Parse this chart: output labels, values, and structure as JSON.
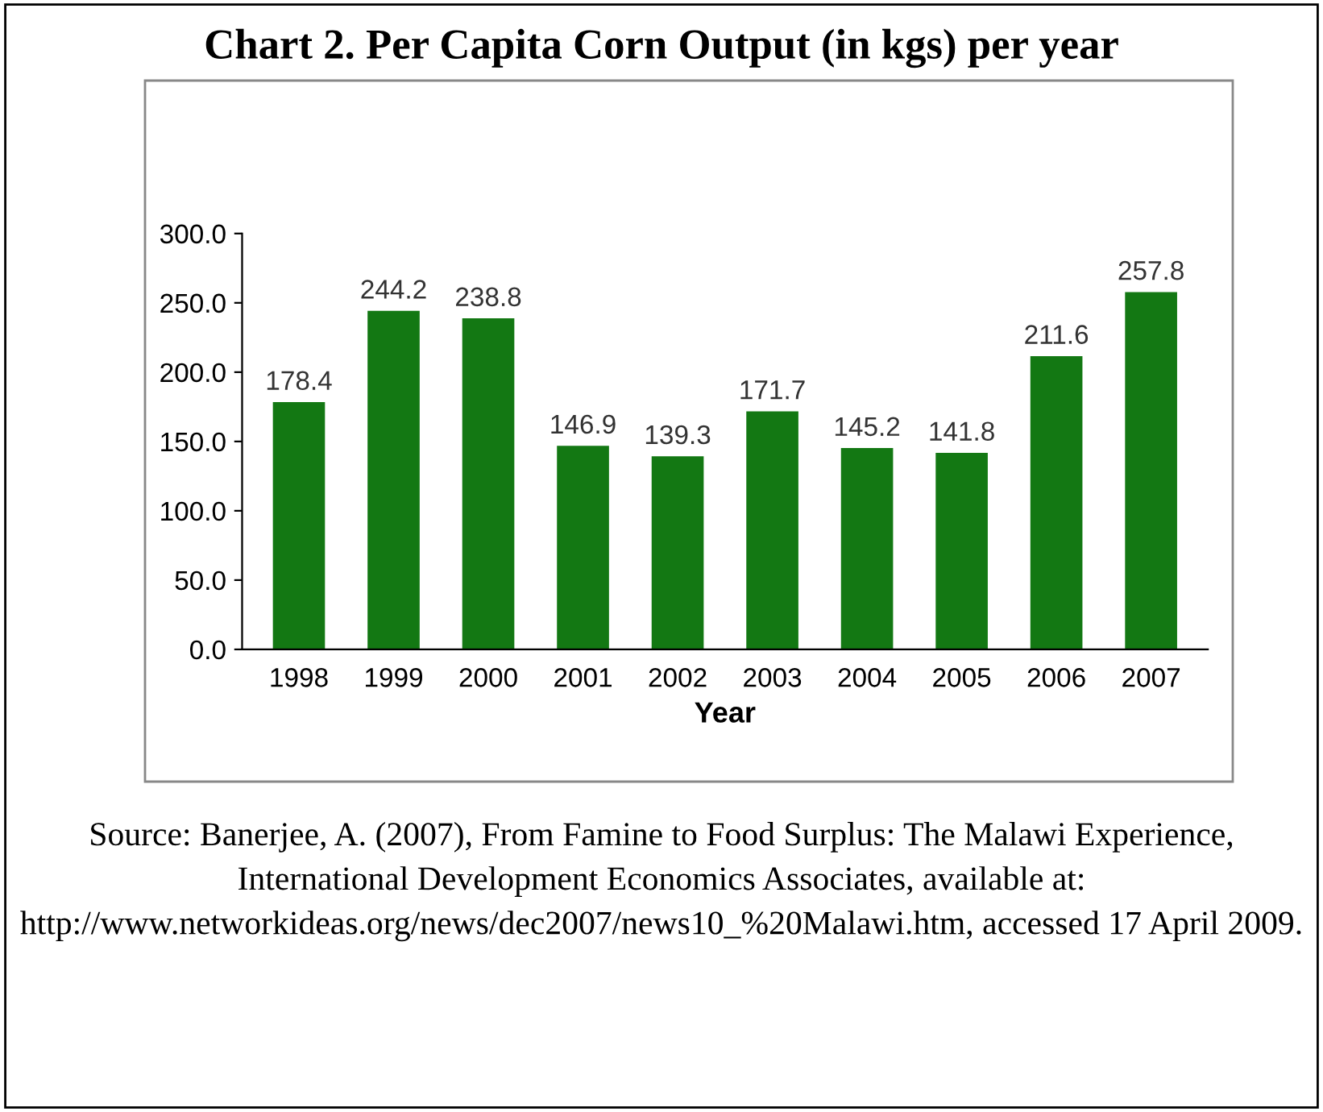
{
  "chart_data": {
    "type": "bar",
    "title": "Chart 2. Per Capita Corn Output (in kgs) per year",
    "xlabel": "Year",
    "categories": [
      "1998",
      "1999",
      "2000",
      "2001",
      "2002",
      "2003",
      "2004",
      "2005",
      "2006",
      "2007"
    ],
    "values": [
      178.4,
      244.2,
      238.8,
      146.9,
      139.3,
      171.7,
      145.2,
      141.8,
      211.6,
      257.8
    ],
    "color": "#137813",
    "data_labels": true,
    "grid": false,
    "legend": false,
    "ylim": [
      0,
      300
    ],
    "yticks": [
      {
        "value": 0,
        "label": "0.0"
      },
      {
        "value": 50,
        "label": "50.0"
      },
      {
        "value": 100,
        "label": "100.0"
      },
      {
        "value": 150,
        "label": "150.0"
      },
      {
        "value": 200,
        "label": "200.0"
      },
      {
        "value": 250,
        "label": "250.0"
      },
      {
        "value": 300,
        "label": "300.0"
      }
    ],
    "annotations": [
      "Source: Banerjee, A. (2007), From Famine to Food Surplus: The Malawi Experience, International Development Economics Associates, available at: http://www.networkideas.org/news/dec2007/news10_%20Malawi.htm, accessed 17 April 2009."
    ]
  }
}
